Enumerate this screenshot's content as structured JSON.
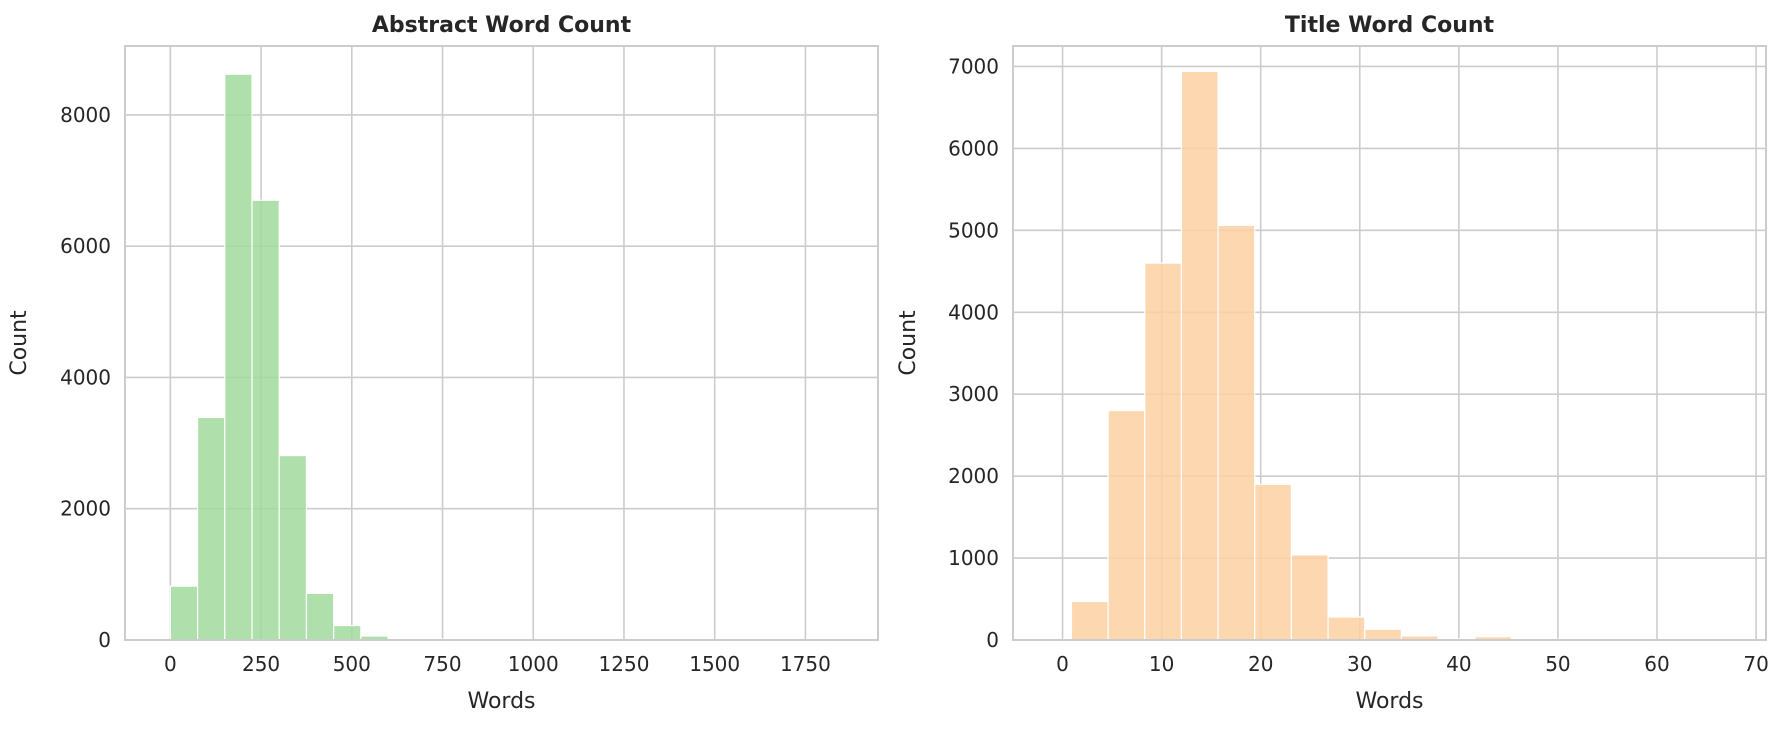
{
  "chart_data": [
    {
      "type": "bar",
      "title": "Abstract Word Count",
      "xlabel": "Words",
      "ylabel": "Count",
      "color": "#a1d99b",
      "xlim": [
        -125,
        1950
      ],
      "ylim": [
        0,
        9050
      ],
      "xticks": [
        0,
        250,
        500,
        750,
        1000,
        1250,
        1500,
        1750
      ],
      "yticks": [
        0,
        2000,
        4000,
        6000,
        8000
      ],
      "grid": true,
      "bin_edges": [
        -50,
        0,
        75,
        150,
        225,
        300,
        375,
        450,
        525,
        600,
        675,
        750,
        825,
        900,
        975,
        1050,
        1125,
        1200,
        1275,
        1350,
        1425,
        1500,
        1575,
        1650,
        1725,
        1800,
        1875
      ],
      "values": [
        12,
        820,
        3390,
        8620,
        6700,
        2810,
        710,
        220,
        60,
        20,
        15,
        10,
        8,
        6,
        5,
        4,
        3,
        3,
        2,
        2,
        2,
        2,
        1,
        1,
        1,
        1
      ]
    },
    {
      "type": "bar",
      "title": "Title Word Count",
      "xlabel": "Words",
      "ylabel": "Count",
      "color": "#fdd0a2",
      "xlim": [
        -5,
        71
      ],
      "ylim": [
        0,
        7250
      ],
      "xticks": [
        0,
        10,
        20,
        30,
        40,
        50,
        60,
        70
      ],
      "yticks": [
        0,
        1000,
        2000,
        3000,
        4000,
        5000,
        6000,
        7000
      ],
      "grid": true,
      "bin_edges": [
        -1.5,
        0.9,
        4.6,
        8.3,
        12.0,
        15.7,
        19.4,
        23.1,
        26.8,
        30.5,
        34.2,
        37.9,
        41.6,
        45.3,
        49.0,
        52.7,
        56.4,
        60.1,
        63.8,
        68.5
      ],
      "values": [
        8,
        470,
        2800,
        4600,
        6940,
        5060,
        1900,
        1040,
        280,
        130,
        50,
        15,
        40,
        15,
        10,
        8,
        6,
        5,
        4
      ]
    }
  ]
}
